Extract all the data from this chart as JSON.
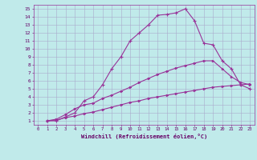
{
  "title": "",
  "xlabel": "Windchill (Refroidissement éolien,°C)",
  "ylabel": "",
  "bg_color": "#c0eaea",
  "grid_color": "#aaaacc",
  "line_color": "#993399",
  "spine_color": "#993399",
  "xlim": [
    -0.5,
    23.5
  ],
  "ylim": [
    0.5,
    15.5
  ],
  "xticks": [
    0,
    1,
    2,
    3,
    4,
    5,
    6,
    7,
    8,
    9,
    10,
    11,
    12,
    13,
    14,
    15,
    16,
    17,
    18,
    19,
    20,
    21,
    22,
    23
  ],
  "yticks": [
    1,
    2,
    3,
    4,
    5,
    6,
    7,
    8,
    9,
    10,
    11,
    12,
    13,
    14,
    15
  ],
  "line1_x": [
    1,
    2,
    3,
    4,
    5,
    6,
    7,
    8,
    9,
    10,
    11,
    12,
    13,
    14,
    15,
    16,
    17,
    18,
    19,
    20,
    21,
    22,
    23
  ],
  "line1_y": [
    1.0,
    1.0,
    1.5,
    2.0,
    3.5,
    4.0,
    5.5,
    7.5,
    9.0,
    11.0,
    12.0,
    13.0,
    14.2,
    14.3,
    14.5,
    15.0,
    13.5,
    10.7,
    10.5,
    8.5,
    7.5,
    5.5,
    5.0
  ],
  "line2_x": [
    1,
    2,
    3,
    4,
    5,
    6,
    7,
    8,
    9,
    10,
    11,
    12,
    13,
    14,
    15,
    16,
    17,
    18,
    19,
    20,
    21,
    22,
    23
  ],
  "line2_y": [
    1.0,
    1.2,
    1.8,
    2.5,
    3.0,
    3.2,
    3.8,
    4.2,
    4.7,
    5.2,
    5.8,
    6.3,
    6.8,
    7.2,
    7.6,
    7.9,
    8.2,
    8.5,
    8.5,
    7.5,
    6.5,
    5.8,
    5.5
  ],
  "line3_x": [
    1,
    2,
    3,
    4,
    5,
    6,
    7,
    8,
    9,
    10,
    11,
    12,
    13,
    14,
    15,
    16,
    17,
    18,
    19,
    20,
    21,
    22,
    23
  ],
  "line3_y": [
    1.0,
    1.1,
    1.4,
    1.6,
    1.9,
    2.1,
    2.4,
    2.7,
    3.0,
    3.3,
    3.5,
    3.8,
    4.0,
    4.2,
    4.4,
    4.6,
    4.8,
    5.0,
    5.2,
    5.3,
    5.4,
    5.5,
    5.6
  ]
}
